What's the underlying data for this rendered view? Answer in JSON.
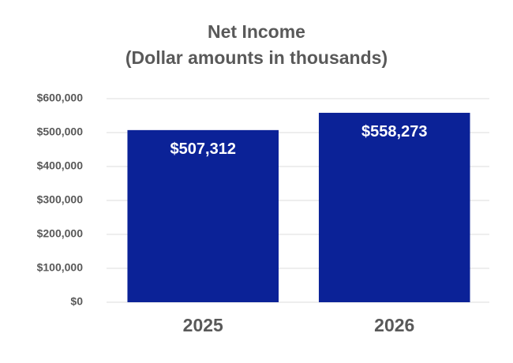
{
  "chart_data": {
    "type": "bar",
    "title": "Net Income",
    "subtitle": "(Dollar amounts in thousands)",
    "categories": [
      "2025",
      "2026"
    ],
    "values": [
      507312,
      558273
    ],
    "value_labels": [
      "$507,312",
      "$558,273"
    ],
    "color": "#0b2297",
    "ylim": [
      0,
      600000
    ],
    "yticks": [
      {
        "value": 0,
        "label": "$0"
      },
      {
        "value": 100000,
        "label": "$100,000"
      },
      {
        "value": 200000,
        "label": "$200,000"
      },
      {
        "value": 300000,
        "label": "$300,000"
      },
      {
        "value": 400000,
        "label": "$400,000"
      },
      {
        "value": 500000,
        "label": "$500,000"
      },
      {
        "value": 600000,
        "label": "$600,000"
      }
    ],
    "grid": true
  }
}
